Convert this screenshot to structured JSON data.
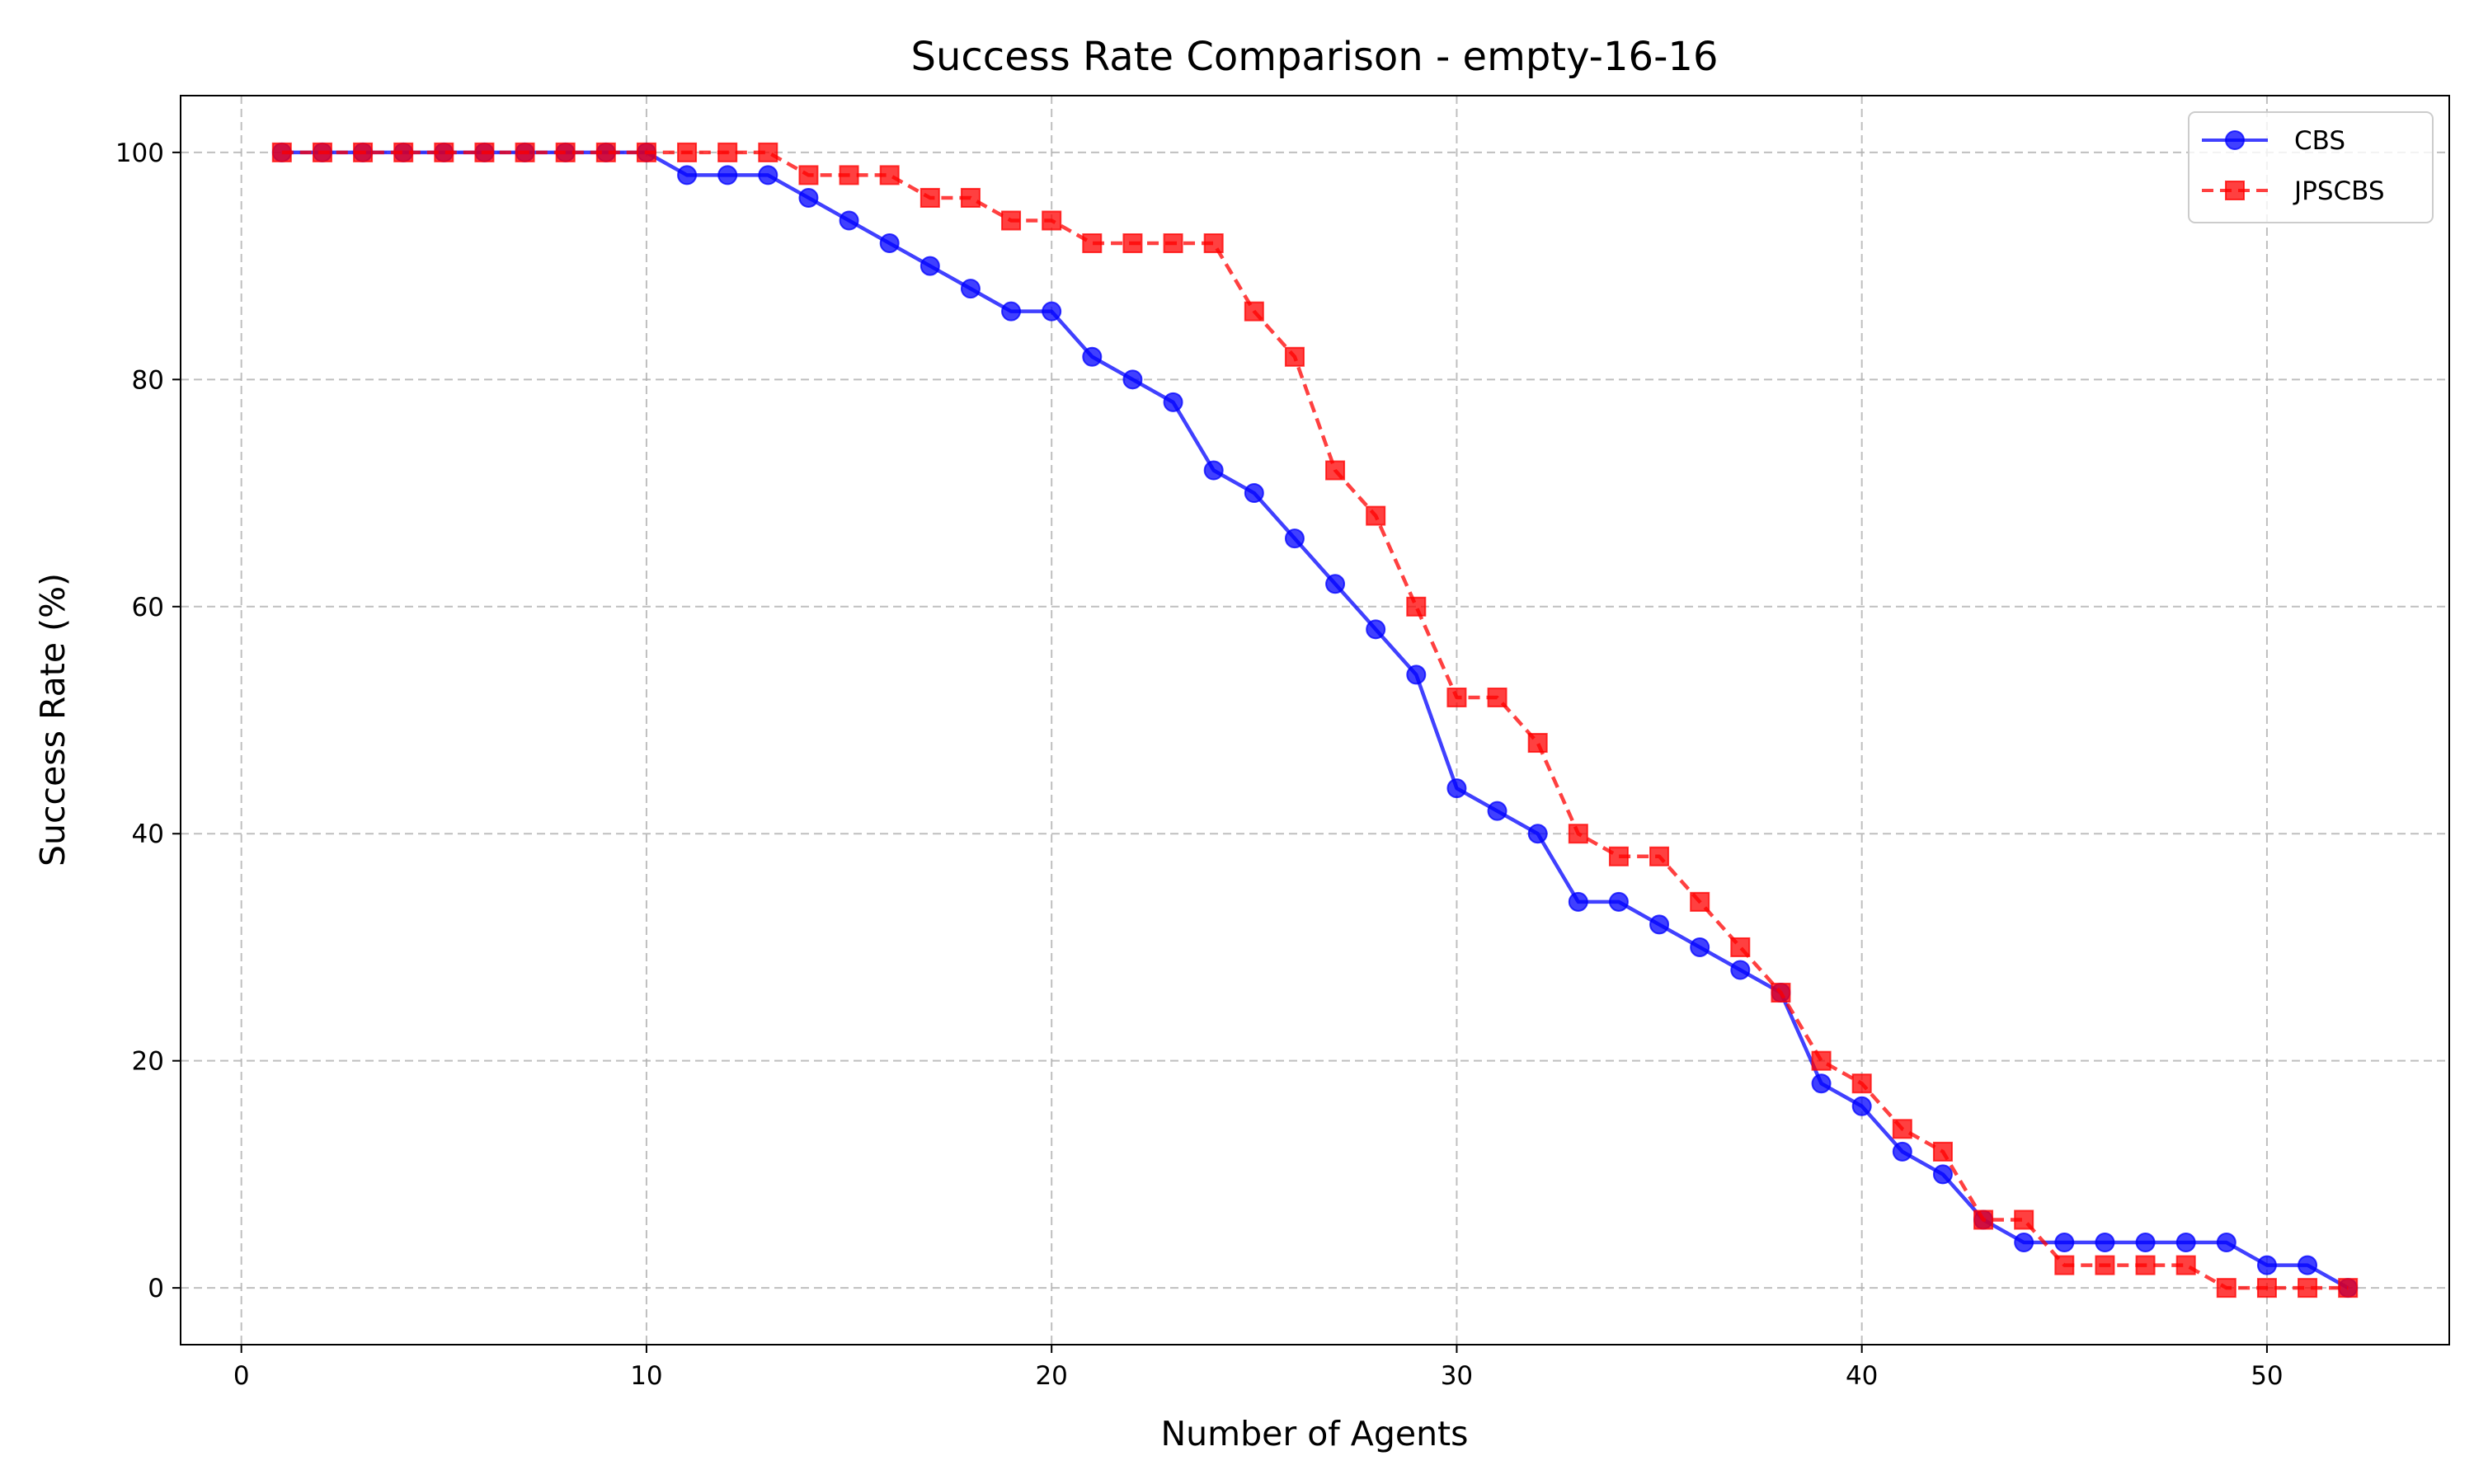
{
  "chart_data": {
    "type": "line",
    "title": "Success Rate Comparison - empty-16-16",
    "xlabel": "Number of Agents",
    "ylabel": "Success Rate (%)",
    "xlim": [
      -1.5,
      54.5
    ],
    "ylim": [
      -5,
      105
    ],
    "xticks": [
      0,
      10,
      20,
      30,
      40,
      50
    ],
    "yticks": [
      0,
      20,
      40,
      60,
      80,
      100
    ],
    "grid": true,
    "legend_position": "top-right",
    "x": [
      1,
      2,
      3,
      4,
      5,
      6,
      7,
      8,
      9,
      10,
      11,
      12,
      13,
      14,
      15,
      16,
      17,
      18,
      19,
      20,
      21,
      22,
      23,
      24,
      25,
      26,
      27,
      28,
      29,
      30,
      31,
      32,
      33,
      34,
      35,
      36,
      37,
      38,
      39,
      40,
      41,
      42,
      43,
      44,
      45,
      46,
      47,
      48,
      49,
      50,
      51,
      52
    ],
    "series": [
      {
        "name": "CBS",
        "color": "#0000ff",
        "line_style": "solid",
        "marker": "circle",
        "values": [
          100,
          100,
          100,
          100,
          100,
          100,
          100,
          100,
          100,
          100,
          98,
          98,
          98,
          96,
          94,
          92,
          90,
          88,
          86,
          86,
          82,
          80,
          78,
          72,
          70,
          66,
          62,
          58,
          54,
          44,
          42,
          40,
          34,
          34,
          32,
          30,
          28,
          26,
          18,
          16,
          12,
          10,
          6,
          4,
          4,
          4,
          4,
          4,
          4,
          2,
          2,
          0
        ]
      },
      {
        "name": "JPSCBS",
        "color": "#ff0000",
        "line_style": "dashed",
        "marker": "square",
        "values": [
          100,
          100,
          100,
          100,
          100,
          100,
          100,
          100,
          100,
          100,
          100,
          100,
          100,
          98,
          98,
          98,
          96,
          96,
          94,
          94,
          92,
          92,
          92,
          92,
          86,
          82,
          72,
          68,
          60,
          52,
          52,
          48,
          40,
          38,
          38,
          34,
          30,
          26,
          20,
          18,
          14,
          12,
          6,
          6,
          2,
          2,
          2,
          2,
          0,
          0,
          0,
          0
        ]
      }
    ]
  }
}
